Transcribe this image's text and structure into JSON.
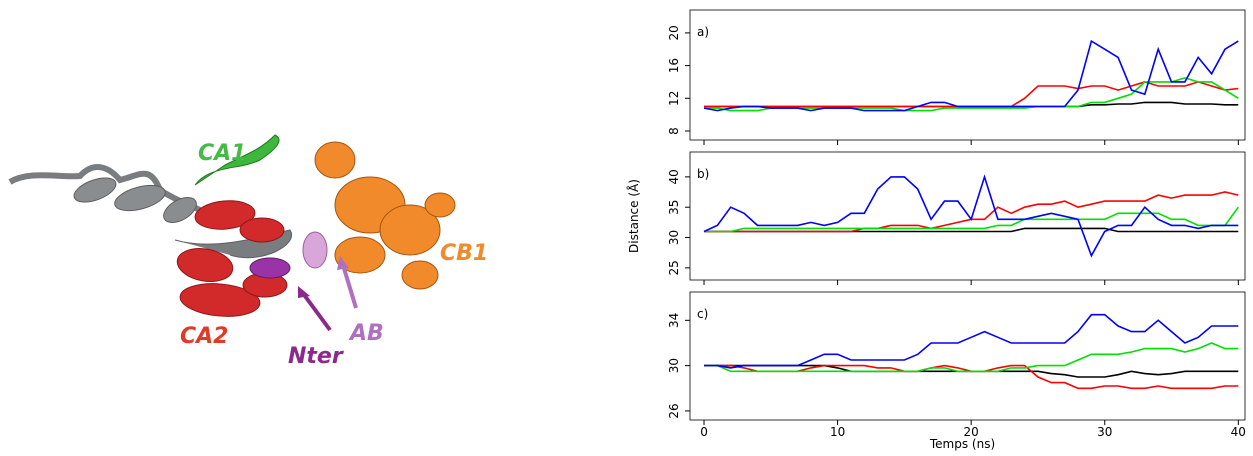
{
  "figure_labels": {
    "ca1": "CA1",
    "cb1": "CB1",
    "ca2": "CA2",
    "nter": "Nter",
    "ab": "AB"
  },
  "chart_data": [
    {
      "type": "line",
      "title": "a)",
      "xlim": [
        -1.05,
        40.5
      ],
      "ylim": [
        6.9,
        22.8
      ],
      "yticks": [
        8,
        12,
        16,
        20
      ],
      "x": [
        0,
        1,
        2,
        3,
        4,
        5,
        6,
        7,
        8,
        9,
        10,
        11,
        12,
        13,
        14,
        15,
        16,
        17,
        18,
        19,
        20,
        21,
        22,
        23,
        24,
        25,
        26,
        27,
        28,
        29,
        30,
        31,
        32,
        33,
        34,
        35,
        36,
        37,
        38,
        39,
        40
      ],
      "series": [
        {
          "color": "#000000",
          "values": [
            11,
            11,
            11,
            11,
            11,
            11,
            11,
            11,
            11,
            11,
            11,
            11,
            11,
            11,
            11,
            11,
            11,
            11,
            11,
            11,
            11,
            11,
            11,
            11,
            11,
            11,
            11,
            11,
            11,
            11.2,
            11.2,
            11.3,
            11.3,
            11.5,
            11.5,
            11.5,
            11.3,
            11.3,
            11.3,
            11.2,
            11.2
          ]
        },
        {
          "color": "#ff0000",
          "values": [
            11,
            11,
            11,
            11,
            11,
            11,
            11,
            11,
            11,
            11,
            11,
            11,
            11,
            11,
            11,
            11,
            11,
            11,
            11,
            11,
            11,
            11,
            11,
            11,
            12,
            13.5,
            13.5,
            13.5,
            13.2,
            13.5,
            13.5,
            13,
            13.5,
            14,
            13.5,
            13.5,
            13.5,
            14,
            13.5,
            13,
            13.2
          ]
        },
        {
          "color": "#00e000",
          "values": [
            10.8,
            10.8,
            10.5,
            10.5,
            10.5,
            10.8,
            10.8,
            10.8,
            10.8,
            10.8,
            10.8,
            10.8,
            10.8,
            10.8,
            10.8,
            10.5,
            10.5,
            10.5,
            10.8,
            10.8,
            10.8,
            10.8,
            10.8,
            10.8,
            10.8,
            11,
            11,
            11,
            11,
            11.5,
            11.5,
            12,
            12.5,
            14,
            14,
            14,
            14.5,
            14,
            14,
            13,
            12
          ]
        },
        {
          "color": "#0000ff",
          "values": [
            10.8,
            10.5,
            10.8,
            11,
            11,
            10.8,
            10.8,
            10.8,
            10.5,
            10.8,
            10.8,
            10.8,
            10.5,
            10.5,
            10.5,
            10.5,
            11,
            11.5,
            11.5,
            11,
            11,
            11,
            11,
            11,
            11,
            11,
            11,
            11,
            13,
            19,
            18,
            17,
            13,
            12.5,
            18,
            14,
            14,
            17,
            15,
            18,
            19
          ]
        }
      ]
    },
    {
      "type": "line",
      "title": "b)",
      "ylabel": "Distance (Å)",
      "xlim": [
        -1.05,
        40.5
      ],
      "ylim": [
        23.0,
        44.1
      ],
      "yticks": [
        25,
        30,
        35,
        40
      ],
      "x": [
        0,
        1,
        2,
        3,
        4,
        5,
        6,
        7,
        8,
        9,
        10,
        11,
        12,
        13,
        14,
        15,
        16,
        17,
        18,
        19,
        20,
        21,
        22,
        23,
        24,
        25,
        26,
        27,
        28,
        29,
        30,
        31,
        32,
        33,
        34,
        35,
        36,
        37,
        38,
        39,
        40
      ],
      "series": [
        {
          "color": "#000000",
          "values": [
            31,
            31,
            31,
            31,
            31,
            31,
            31,
            31,
            31,
            31,
            31,
            31,
            31,
            31,
            31,
            31,
            31,
            31,
            31,
            31,
            31,
            31,
            31,
            31,
            31.5,
            31.5,
            31.5,
            31.5,
            31.5,
            31.5,
            31.5,
            31,
            31,
            31,
            31,
            31,
            31,
            31,
            31,
            31,
            31
          ]
        },
        {
          "color": "#ff0000",
          "values": [
            31,
            31,
            31,
            31,
            31,
            31,
            31,
            31,
            31,
            31,
            31,
            31,
            31.5,
            31.5,
            32,
            32,
            32,
            31.5,
            32,
            32.5,
            33,
            33,
            35,
            34,
            35,
            35.5,
            35.5,
            36,
            35,
            35.5,
            36,
            36,
            36,
            36,
            37,
            36.5,
            37,
            37,
            37,
            37.5,
            37
          ]
        },
        {
          "color": "#00e000",
          "values": [
            31,
            31,
            31,
            31.5,
            31.5,
            31.5,
            31.5,
            31.5,
            31.5,
            31.5,
            31.5,
            31.5,
            31.5,
            31.5,
            31.5,
            31.5,
            31.5,
            31.5,
            31.5,
            31.5,
            31.5,
            31.5,
            32,
            32,
            33,
            33,
            33,
            33,
            33,
            33,
            33,
            34,
            34,
            34,
            34,
            33,
            33,
            32,
            32,
            32,
            35
          ]
        },
        {
          "color": "#0000ff",
          "values": [
            31,
            32,
            35,
            34,
            32,
            32,
            32,
            32,
            32.5,
            32,
            32.5,
            34,
            34,
            38,
            40,
            40,
            38,
            33,
            36,
            36,
            33,
            40,
            33,
            33,
            33,
            33.5,
            34,
            33.5,
            33,
            27,
            31,
            32,
            32,
            35,
            33,
            32,
            32,
            31.5,
            32,
            32,
            32
          ]
        }
      ]
    },
    {
      "type": "line",
      "title": "c)",
      "xlabel": "Temps (ns)",
      "xlim": [
        -1.05,
        40.5
      ],
      "ylim": [
        25.2,
        36.5
      ],
      "xticks": [
        0,
        10,
        20,
        30,
        40
      ],
      "yticks": [
        26,
        30,
        34
      ],
      "x": [
        0,
        1,
        2,
        3,
        4,
        5,
        6,
        7,
        8,
        9,
        10,
        11,
        12,
        13,
        14,
        15,
        16,
        17,
        18,
        19,
        20,
        21,
        22,
        23,
        24,
        25,
        26,
        27,
        28,
        29,
        30,
        31,
        32,
        33,
        34,
        35,
        36,
        37,
        38,
        39,
        40
      ],
      "series": [
        {
          "color": "#000000",
          "values": [
            30,
            30,
            30,
            30,
            30,
            30,
            30,
            30,
            30,
            30,
            29.8,
            29.5,
            29.5,
            29.5,
            29.5,
            29.5,
            29.5,
            29.5,
            29.5,
            29.5,
            29.5,
            29.5,
            29.5,
            29.5,
            29.5,
            29.5,
            29.3,
            29.2,
            29,
            29,
            29,
            29.2,
            29.5,
            29.3,
            29.2,
            29.3,
            29.5,
            29.5,
            29.5,
            29.5,
            29.5
          ]
        },
        {
          "color": "#ff0000",
          "values": [
            30,
            30,
            30,
            29.8,
            29.5,
            29.5,
            29.5,
            29.5,
            29.8,
            30,
            30,
            30,
            30,
            29.8,
            29.8,
            29.5,
            29.5,
            29.8,
            30,
            29.8,
            29.5,
            29.5,
            29.8,
            30,
            30,
            29,
            28.5,
            28.5,
            28,
            28,
            28.2,
            28.2,
            28,
            28,
            28.2,
            28,
            28,
            28,
            28,
            28.2,
            28.2
          ]
        },
        {
          "color": "#00e000",
          "values": [
            30,
            30,
            29.5,
            29.5,
            29.5,
            29.5,
            29.5,
            29.5,
            29.5,
            29.5,
            29.5,
            29.5,
            29.5,
            29.5,
            29.5,
            29.5,
            29.5,
            29.8,
            29.8,
            29.5,
            29.5,
            29.5,
            29.5,
            29.8,
            29.8,
            30,
            30,
            30,
            30.5,
            31,
            31,
            31,
            31.2,
            31.5,
            31.5,
            31.5,
            31.2,
            31.5,
            32,
            31.5,
            31.5
          ]
        },
        {
          "color": "#0000ff",
          "values": [
            30,
            30,
            29.8,
            30,
            30,
            30,
            30,
            30,
            30.5,
            31,
            31,
            30.5,
            30.5,
            30.5,
            30.5,
            30.5,
            31,
            32,
            32,
            32,
            32.5,
            33,
            32.5,
            32,
            32,
            32,
            32,
            32,
            33,
            34.5,
            34.5,
            33.5,
            33,
            33,
            34,
            33,
            32,
            32.5,
            33.5,
            33.5,
            33.5
          ]
        }
      ]
    }
  ]
}
